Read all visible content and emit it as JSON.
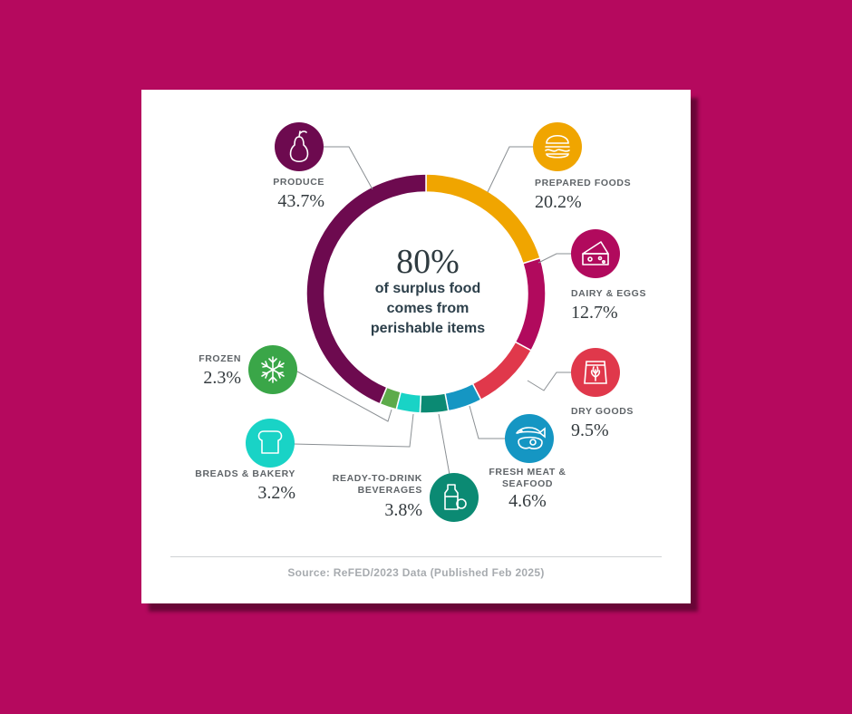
{
  "headline": {
    "value": "80%",
    "line1": "of surplus food",
    "line2": "comes from",
    "line3": "perishable items"
  },
  "chart_data": {
    "type": "pie",
    "style": "donut",
    "total_label": "80%",
    "slices": [
      {
        "label": "PREPARED FOODS",
        "value": 20.2,
        "display": "20.2%",
        "color": "#f0a500",
        "icon": "burger-icon"
      },
      {
        "label": "DAIRY & EGGS",
        "value": 12.7,
        "display": "12.7%",
        "color": "#b10a5d",
        "icon": "cheese-icon"
      },
      {
        "label": "DRY GOODS",
        "value": 9.5,
        "display": "9.5%",
        "color": "#e0384b",
        "icon": "grain-bag-icon"
      },
      {
        "label": "FRESH MEAT & SEAFOOD",
        "value": 4.6,
        "display": "4.6%",
        "color": "#1596c3",
        "icon": "fish-steak-icon"
      },
      {
        "label": "READY-TO-DRINK BEVERAGES",
        "value": 3.8,
        "display": "3.8%",
        "color": "#0b8a73",
        "icon": "bottle-icon"
      },
      {
        "label": "BREADS & BAKERY",
        "value": 3.2,
        "display": "3.2%",
        "color": "#19d3c6",
        "icon": "bread-icon"
      },
      {
        "label": "FROZEN",
        "value": 2.3,
        "display": "2.3%",
        "color": "#5dab4a",
        "icon": "snowflake-icon"
      },
      {
        "label": "PRODUCE",
        "value": 43.7,
        "display": "43.7%",
        "color": "#6d0a4f",
        "icon": "pear-icon"
      }
    ]
  },
  "labels": {
    "produce": {
      "name": "PRODUCE",
      "pct": "43.7%"
    },
    "prepared": {
      "name": "PREPARED FOODS",
      "pct": "20.2%"
    },
    "dairy": {
      "name": "DAIRY & EGGS",
      "pct": "12.7%"
    },
    "dry": {
      "name": "DRY GOODS",
      "pct": "9.5%"
    },
    "meat": {
      "name_line1": "FRESH MEAT &",
      "name_line2": "SEAFOOD",
      "pct": "4.6%"
    },
    "beverages": {
      "name_line1": "READY-TO-DRINK",
      "name_line2": "BEVERAGES",
      "pct": "3.8%"
    },
    "breads": {
      "name": "BREADS & BAKERY",
      "pct": "3.2%"
    },
    "frozen": {
      "name": "FROZEN",
      "pct": "2.3%"
    }
  },
  "source": "Source: ReFED/2023 Data (Published Feb 2025)"
}
